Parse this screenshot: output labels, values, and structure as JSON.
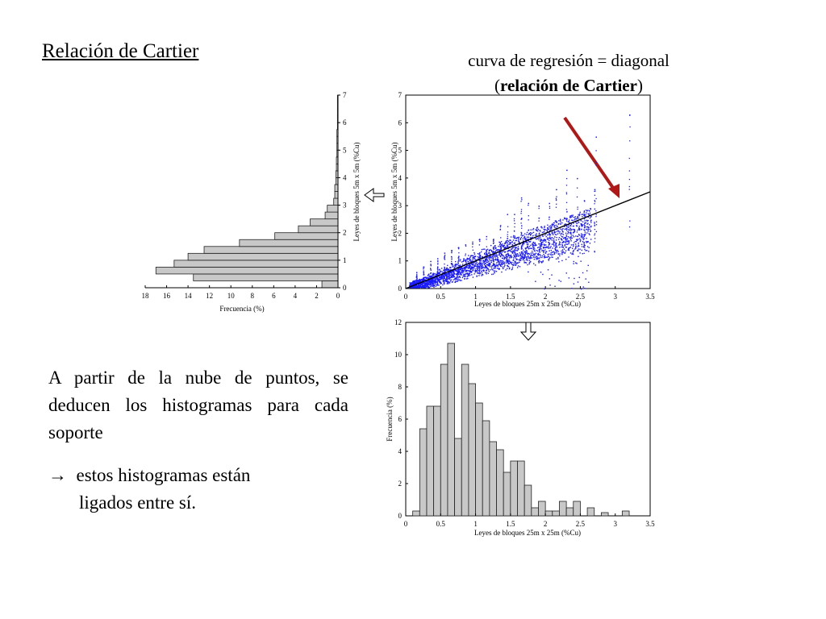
{
  "slide": {
    "title": "Relación de Cartier",
    "regression_label_line1": "curva de regresión = diagonal",
    "regression_label_line2_open": "(",
    "regression_label_line2_bold": "relación de Cartier",
    "regression_label_line2_close": ")",
    "body_text": "A partir de la nube de puntos, se deducen los histogramas para cada soporte",
    "bullet_symbol": "→",
    "bullet_line1": "estos histogramas están",
    "bullet_line2": "ligados entre sí."
  },
  "colors": {
    "points": "#1a1aff",
    "bars": "#c8c8c8",
    "arrow": "#b01818",
    "line": "#000000"
  },
  "chart_data": [
    {
      "id": "left-hist",
      "type": "bar",
      "orientation": "horizontal",
      "xlabel": "Frecuencia (%)",
      "ylabel": "Leyes de bloques  5m x 5m (%Cu)",
      "xlim": [
        18,
        0
      ],
      "ylim": [
        0,
        7
      ],
      "xticks": [
        "18",
        "16",
        "14",
        "12",
        "10",
        "8",
        "6",
        "4",
        "2",
        "0"
      ],
      "yticks": [
        "0",
        "1",
        "2",
        "3",
        "4",
        "5",
        "6",
        "7"
      ],
      "bin_width": 0.25,
      "bin_starts": [
        0,
        0.25,
        0.5,
        0.75,
        1,
        1.25,
        1.5,
        1.75,
        2,
        2.25,
        2.5,
        2.75,
        3,
        3.25,
        3.5,
        3.75,
        4,
        4.25,
        4.5,
        4.75,
        5,
        5.25,
        5.5,
        5.75,
        6,
        6.25,
        6.5,
        6.75
      ],
      "values": [
        1.5,
        13.5,
        17,
        15.3,
        14,
        12.5,
        9.2,
        5.9,
        3.7,
        2.6,
        1.2,
        1.0,
        0.4,
        0.3,
        0.3,
        0.2,
        0.2,
        0.15,
        0.15,
        0.1,
        0.1,
        0.1,
        0.1,
        0.05,
        0.05,
        0.05,
        0.05,
        0.05
      ]
    },
    {
      "id": "scatter",
      "type": "scatter",
      "xlabel": "Leyes de bloques 25m x 25m (%Cu)",
      "ylabel": "Leyes de bloques  5m x 5m (%Cu)",
      "xlim": [
        0,
        3.5
      ],
      "ylim": [
        0,
        7
      ],
      "xticks": [
        "0",
        "0.5",
        "1",
        "1.5",
        "2",
        "2.5",
        "3",
        "3.5"
      ],
      "yticks": [
        "0",
        "1",
        "2",
        "3",
        "4",
        "5",
        "6",
        "7"
      ],
      "regression_line": {
        "x": [
          0,
          3.5
        ],
        "y": [
          0,
          3.5
        ]
      },
      "columns": [
        {
          "x": 0.15,
          "ymax": 0.6
        },
        {
          "x": 0.25,
          "ymax": 0.8
        },
        {
          "x": 0.35,
          "ymax": 1.0
        },
        {
          "x": 0.45,
          "ymax": 1.1
        },
        {
          "x": 0.55,
          "ymax": 1.3
        },
        {
          "x": 0.65,
          "ymax": 1.4
        },
        {
          "x": 0.75,
          "ymax": 1.5
        },
        {
          "x": 0.85,
          "ymax": 1.6
        },
        {
          "x": 0.95,
          "ymax": 1.7
        },
        {
          "x": 1.05,
          "ymax": 1.8
        },
        {
          "x": 1.15,
          "ymax": 1.9
        },
        {
          "x": 1.25,
          "ymax": 1.8
        },
        {
          "x": 1.35,
          "ymax": 2.3
        },
        {
          "x": 1.45,
          "ymax": 2.7
        },
        {
          "x": 1.55,
          "ymax": 2.7
        },
        {
          "x": 1.65,
          "ymax": 3.3
        },
        {
          "x": 1.75,
          "ymax": 3.1
        },
        {
          "x": 1.9,
          "ymax": 3.0
        },
        {
          "x": 2.05,
          "ymax": 3.1
        },
        {
          "x": 2.15,
          "ymax": 3.6
        },
        {
          "x": 2.3,
          "ymax": 4.3
        },
        {
          "x": 2.45,
          "ymax": 4.0
        },
        {
          "x": 2.55,
          "ymax": 3.2
        },
        {
          "x": 2.7,
          "ymax": 3.6
        },
        {
          "x": 2.72,
          "ymax": 5.5
        },
        {
          "x": 3.2,
          "ymax": 6.3
        }
      ]
    },
    {
      "id": "bottom-hist",
      "type": "bar",
      "xlabel": "Leyes de bloques 25m x 25m (%Cu)",
      "ylabel": "Frecuencia (%)",
      "xlim": [
        0,
        3.5
      ],
      "ylim": [
        0,
        12
      ],
      "xticks": [
        "0",
        "0.5",
        "1",
        "1.5",
        "2",
        "2.5",
        "3",
        "3.5"
      ],
      "yticks": [
        "0",
        "2",
        "4",
        "6",
        "8",
        "10",
        "12"
      ],
      "bin_width": 0.1,
      "bin_starts": [
        0.1,
        0.2,
        0.3,
        0.4,
        0.5,
        0.6,
        0.7,
        0.8,
        0.9,
        1.0,
        1.1,
        1.2,
        1.3,
        1.4,
        1.5,
        1.6,
        1.7,
        1.8,
        1.9,
        2.0,
        2.1,
        2.2,
        2.3,
        2.4,
        2.6,
        2.8,
        3.1
      ],
      "values": [
        0.3,
        5.4,
        6.8,
        6.8,
        9.4,
        10.7,
        4.8,
        9.4,
        8.2,
        7.0,
        5.9,
        4.6,
        4.1,
        2.7,
        3.4,
        3.4,
        1.9,
        0.5,
        0.9,
        0.3,
        0.3,
        0.9,
        0.5,
        0.9,
        0.5,
        0.2,
        0.3
      ]
    }
  ]
}
